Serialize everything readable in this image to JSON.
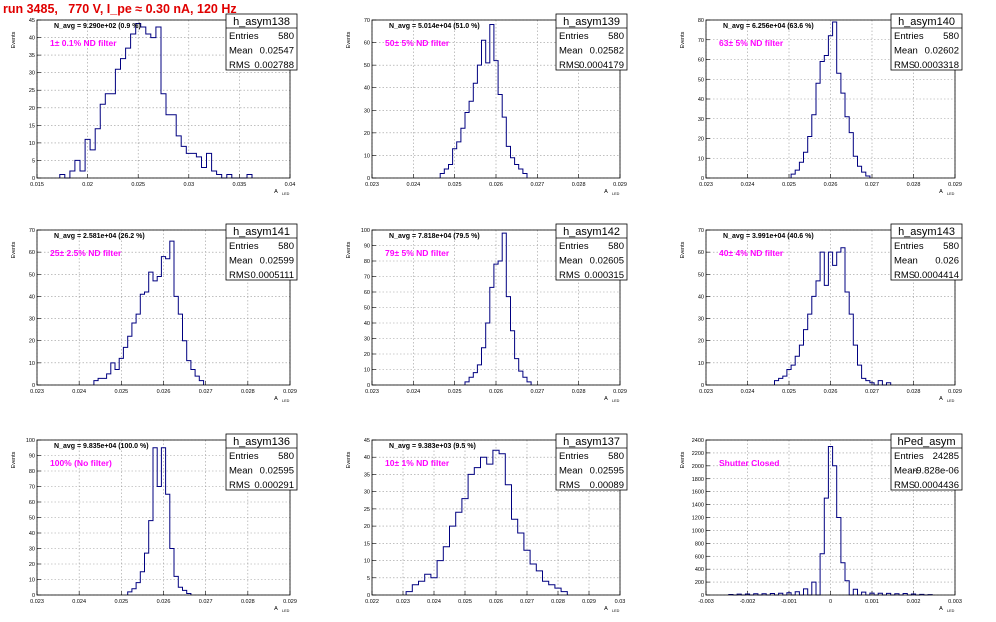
{
  "page_title": "run 3485,   770 V, I_pe ≈ 0.30 nA, 120 Hz",
  "colors": {
    "title": "#e00000",
    "histogram": "#000080",
    "annotation": "#ff00ff",
    "grid": "#9a9a9a"
  },
  "y_axis_label": "Events",
  "x_axis_label_main": "A",
  "x_axis_label_sub": "LED",
  "stats_labels": {
    "entries": "Entries",
    "mean": "Mean",
    "rms": "RMS"
  },
  "chart_data": [
    {
      "type": "histogram",
      "name": "h_asym138",
      "navg_text": "N_avg = 9.290e+02 (0.9 %)",
      "annotation": "1± 0.1% ND filter",
      "stats": {
        "entries": "580",
        "mean": "0.02547",
        "rms": "0.002788"
      },
      "xlim": [
        0.015,
        0.04
      ],
      "xticks": [
        "0.015",
        "0.02",
        "0.025",
        "0.03",
        "0.035",
        "0.04"
      ],
      "ylim": [
        0,
        45
      ],
      "yticks": [
        "0",
        "5",
        "10",
        "15",
        "20",
        "25",
        "30",
        "35",
        "40",
        "45"
      ],
      "bins": [
        [
          0.0175,
          1
        ],
        [
          0.0185,
          2
        ],
        [
          0.019,
          5
        ],
        [
          0.0195,
          2
        ],
        [
          0.02,
          11
        ],
        [
          0.0205,
          8
        ],
        [
          0.021,
          14
        ],
        [
          0.0215,
          21
        ],
        [
          0.022,
          24
        ],
        [
          0.0225,
          24
        ],
        [
          0.023,
          31
        ],
        [
          0.0235,
          34
        ],
        [
          0.024,
          37
        ],
        [
          0.0245,
          41
        ],
        [
          0.025,
          44
        ],
        [
          0.0255,
          43
        ],
        [
          0.026,
          41
        ],
        [
          0.0265,
          40
        ],
        [
          0.027,
          43
        ],
        [
          0.0275,
          24
        ],
        [
          0.028,
          18
        ],
        [
          0.0285,
          18
        ],
        [
          0.029,
          12
        ],
        [
          0.0295,
          9
        ],
        [
          0.03,
          7
        ],
        [
          0.0305,
          7
        ],
        [
          0.031,
          6
        ],
        [
          0.0315,
          3
        ],
        [
          0.032,
          7
        ],
        [
          0.0325,
          2
        ],
        [
          0.033,
          1
        ],
        [
          0.034,
          1
        ],
        [
          0.036,
          1
        ]
      ],
      "binw": 0.0005
    },
    {
      "type": "histogram",
      "name": "h_asym139",
      "navg_text": "N_avg = 5.014e+04 (51.0 %)",
      "annotation": "50± 5% ND filter",
      "stats": {
        "entries": "580",
        "mean": "0.02582",
        "rms": "0.0004179"
      },
      "xlim": [
        0.023,
        0.029
      ],
      "xticks": [
        "0.023",
        "0.024",
        "0.025",
        "0.026",
        "0.027",
        "0.028",
        "0.029"
      ],
      "ylim": [
        0,
        70
      ],
      "yticks": [
        "0",
        "10",
        "20",
        "30",
        "40",
        "50",
        "60",
        "70"
      ],
      "bins": [
        [
          0.0247,
          2
        ],
        [
          0.0248,
          4
        ],
        [
          0.0249,
          6
        ],
        [
          0.025,
          13
        ],
        [
          0.0251,
          16
        ],
        [
          0.0252,
          22
        ],
        [
          0.0253,
          29
        ],
        [
          0.0254,
          34
        ],
        [
          0.0255,
          42
        ],
        [
          0.0256,
          50
        ],
        [
          0.0257,
          61
        ],
        [
          0.0258,
          51
        ],
        [
          0.0259,
          68
        ],
        [
          0.026,
          52
        ],
        [
          0.0261,
          37
        ],
        [
          0.0262,
          27
        ],
        [
          0.0263,
          14
        ],
        [
          0.0264,
          9
        ],
        [
          0.0265,
          6
        ],
        [
          0.0266,
          4
        ],
        [
          0.0267,
          2
        ]
      ],
      "binw": 0.0001
    },
    {
      "type": "histogram",
      "name": "h_asym140",
      "navg_text": "N_avg = 6.256e+04 (63.6 %)",
      "annotation": "63± 5% ND filter",
      "stats": {
        "entries": "580",
        "mean": "0.02602",
        "rms": "0.0003318"
      },
      "xlim": [
        0.023,
        0.029
      ],
      "xticks": [
        "0.023",
        "0.024",
        "0.025",
        "0.026",
        "0.027",
        "0.028",
        "0.029"
      ],
      "ylim": [
        0,
        80
      ],
      "yticks": [
        "0",
        "10",
        "20",
        "30",
        "40",
        "50",
        "60",
        "70",
        "80"
      ],
      "bins": [
        [
          0.0251,
          2
        ],
        [
          0.0252,
          4
        ],
        [
          0.0253,
          8
        ],
        [
          0.0254,
          13
        ],
        [
          0.0255,
          21
        ],
        [
          0.0256,
          32
        ],
        [
          0.0257,
          48
        ],
        [
          0.0258,
          59
        ],
        [
          0.0259,
          62
        ],
        [
          0.026,
          72
        ],
        [
          0.0261,
          79
        ],
        [
          0.0262,
          53
        ],
        [
          0.0263,
          43
        ],
        [
          0.0264,
          31
        ],
        [
          0.0265,
          23
        ],
        [
          0.0266,
          11
        ],
        [
          0.0267,
          6
        ],
        [
          0.0268,
          3
        ],
        [
          0.0269,
          1
        ]
      ],
      "binw": 0.0001
    },
    {
      "type": "histogram",
      "name": "h_asym141",
      "navg_text": "N_avg = 2.581e+04 (26.2 %)",
      "annotation": "25± 2.5% ND filter",
      "stats": {
        "entries": "580",
        "mean": "0.02599",
        "rms": "0.0005111"
      },
      "xlim": [
        0.023,
        0.029
      ],
      "xticks": [
        "0.023",
        "0.024",
        "0.025",
        "0.026",
        "0.027",
        "0.028",
        "0.029"
      ],
      "ylim": [
        0,
        70
      ],
      "yticks": [
        "0",
        "10",
        "20",
        "30",
        "40",
        "50",
        "60",
        "70"
      ],
      "bins": [
        [
          0.0244,
          2
        ],
        [
          0.0245,
          3
        ],
        [
          0.0246,
          3
        ],
        [
          0.0247,
          5
        ],
        [
          0.0248,
          10
        ],
        [
          0.0249,
          7
        ],
        [
          0.025,
          12
        ],
        [
          0.0251,
          17
        ],
        [
          0.0252,
          22
        ],
        [
          0.0253,
          28
        ],
        [
          0.0254,
          32
        ],
        [
          0.0255,
          41
        ],
        [
          0.0256,
          42
        ],
        [
          0.0257,
          51
        ],
        [
          0.0258,
          47
        ],
        [
          0.0259,
          49
        ],
        [
          0.026,
          58
        ],
        [
          0.0261,
          57
        ],
        [
          0.0262,
          65
        ],
        [
          0.0263,
          40
        ],
        [
          0.0264,
          32
        ],
        [
          0.0265,
          20
        ],
        [
          0.0266,
          11
        ],
        [
          0.0267,
          7
        ],
        [
          0.0268,
          4
        ],
        [
          0.0269,
          2
        ]
      ],
      "binw": 0.0001
    },
    {
      "type": "histogram",
      "name": "h_asym142",
      "navg_text": "N_avg = 7.818e+04 (79.5 %)",
      "annotation": "79± 5% ND filter",
      "stats": {
        "entries": "580",
        "mean": "0.02605",
        "rms": "0.000315"
      },
      "xlim": [
        0.023,
        0.029
      ],
      "xticks": [
        "0.023",
        "0.024",
        "0.025",
        "0.026",
        "0.027",
        "0.028",
        "0.029"
      ],
      "ylim": [
        0,
        100
      ],
      "yticks": [
        "0",
        "10",
        "20",
        "30",
        "40",
        "50",
        "60",
        "70",
        "80",
        "90",
        "100"
      ],
      "bins": [
        [
          0.0253,
          2
        ],
        [
          0.0254,
          5
        ],
        [
          0.0255,
          8
        ],
        [
          0.0256,
          13
        ],
        [
          0.0257,
          24
        ],
        [
          0.0258,
          40
        ],
        [
          0.0259,
          63
        ],
        [
          0.026,
          78
        ],
        [
          0.0261,
          80
        ],
        [
          0.0262,
          98
        ],
        [
          0.0263,
          57
        ],
        [
          0.0264,
          35
        ],
        [
          0.0265,
          17
        ],
        [
          0.0266,
          9
        ],
        [
          0.0267,
          5
        ],
        [
          0.0268,
          2
        ]
      ],
      "binw": 0.0001
    },
    {
      "type": "histogram",
      "name": "h_asym143",
      "navg_text": "N_avg = 3.991e+04 (40.6 %)",
      "annotation": "40± 4% ND filter",
      "stats": {
        "entries": "580",
        "mean": "0.026",
        "rms": "0.0004414"
      },
      "xlim": [
        0.023,
        0.029
      ],
      "xticks": [
        "0.023",
        "0.024",
        "0.025",
        "0.026",
        "0.027",
        "0.028",
        "0.029"
      ],
      "ylim": [
        0,
        70
      ],
      "yticks": [
        "0",
        "10",
        "20",
        "30",
        "40",
        "50",
        "60",
        "70"
      ],
      "bins": [
        [
          0.0247,
          2
        ],
        [
          0.0248,
          3
        ],
        [
          0.0249,
          4
        ],
        [
          0.025,
          7
        ],
        [
          0.0251,
          9
        ],
        [
          0.0252,
          13
        ],
        [
          0.0253,
          18
        ],
        [
          0.0254,
          25
        ],
        [
          0.0255,
          32
        ],
        [
          0.0256,
          40
        ],
        [
          0.0257,
          47
        ],
        [
          0.0258,
          60
        ],
        [
          0.0259,
          45
        ],
        [
          0.026,
          60
        ],
        [
          0.0261,
          54
        ],
        [
          0.0262,
          60
        ],
        [
          0.0263,
          62
        ],
        [
          0.0264,
          42
        ],
        [
          0.0265,
          32
        ],
        [
          0.0266,
          18
        ],
        [
          0.0267,
          9
        ],
        [
          0.0268,
          3
        ],
        [
          0.0269,
          2
        ],
        [
          0.027,
          1
        ],
        [
          0.0272,
          2
        ],
        [
          0.0274,
          1
        ]
      ],
      "binw": 0.0001
    },
    {
      "type": "histogram",
      "name": "h_asym136",
      "navg_text": "N_avg = 9.835e+04 (100.0 %)",
      "annotation": "100% (No filter)",
      "stats": {
        "entries": "580",
        "mean": "0.02595",
        "rms": "0.000291"
      },
      "xlim": [
        0.023,
        0.029
      ],
      "xticks": [
        "0.023",
        "0.024",
        "0.025",
        "0.026",
        "0.027",
        "0.028",
        "0.029"
      ],
      "ylim": [
        0,
        100
      ],
      "yticks": [
        "0",
        "10",
        "20",
        "30",
        "40",
        "50",
        "60",
        "70",
        "80",
        "90",
        "100"
      ],
      "bins": [
        [
          0.0252,
          2
        ],
        [
          0.0253,
          4
        ],
        [
          0.0254,
          8
        ],
        [
          0.0255,
          15
        ],
        [
          0.0256,
          27
        ],
        [
          0.0257,
          48
        ],
        [
          0.0258,
          95
        ],
        [
          0.0259,
          70
        ],
        [
          0.026,
          95
        ],
        [
          0.0261,
          65
        ],
        [
          0.0262,
          30
        ],
        [
          0.0263,
          12
        ],
        [
          0.0264,
          5
        ],
        [
          0.0265,
          3
        ],
        [
          0.0266,
          1
        ]
      ],
      "binw": 0.0001
    },
    {
      "type": "histogram",
      "name": "h_asym137",
      "navg_text": "N_avg = 9.383e+03 (9.5 %)",
      "annotation": "10± 1% ND filter",
      "stats": {
        "entries": "580",
        "mean": "0.02595",
        "rms": "0.00089"
      },
      "xlim": [
        0.022,
        0.03
      ],
      "xticks": [
        "0.022",
        "0.023",
        "0.024",
        "0.025",
        "0.026",
        "0.027",
        "0.028",
        "0.029",
        "0.03"
      ],
      "ylim": [
        0,
        45
      ],
      "yticks": [
        "0",
        "5",
        "10",
        "15",
        "20",
        "25",
        "30",
        "35",
        "40",
        "45"
      ],
      "bins": [
        [
          0.0232,
          1
        ],
        [
          0.0234,
          3
        ],
        [
          0.0236,
          4
        ],
        [
          0.0238,
          6
        ],
        [
          0.024,
          5
        ],
        [
          0.0242,
          10
        ],
        [
          0.0244,
          14
        ],
        [
          0.0246,
          20
        ],
        [
          0.0248,
          24
        ],
        [
          0.025,
          28
        ],
        [
          0.0252,
          35
        ],
        [
          0.0254,
          37
        ],
        [
          0.0256,
          40
        ],
        [
          0.0258,
          38
        ],
        [
          0.026,
          42
        ],
        [
          0.0262,
          41
        ],
        [
          0.0264,
          32
        ],
        [
          0.0266,
          22
        ],
        [
          0.0268,
          18
        ],
        [
          0.027,
          13
        ],
        [
          0.0272,
          9
        ],
        [
          0.0274,
          7
        ],
        [
          0.0276,
          4
        ],
        [
          0.0278,
          3
        ],
        [
          0.028,
          2
        ],
        [
          0.0282,
          1
        ]
      ],
      "binw": 0.0002
    },
    {
      "type": "histogram",
      "name": "hPed_asym",
      "navg_text": "",
      "annotation": "Shutter Closed",
      "stats": {
        "entries": "24285",
        "mean": "-9.828e-06",
        "rms": "0.0004436"
      },
      "xlim": [
        -0.003,
        0.003
      ],
      "xticks": [
        "-0.003",
        "-0.002",
        "-0.001",
        "0",
        "0.001",
        "0.002",
        "0.003"
      ],
      "ylim": [
        0,
        2400
      ],
      "yticks": [
        "0",
        "200",
        "400",
        "600",
        "800",
        "1000",
        "1200",
        "1400",
        "1600",
        "1800",
        "2000",
        "2200",
        "2400"
      ],
      "bins": [
        [
          -0.0024,
          8
        ],
        [
          -0.0022,
          14
        ],
        [
          -0.002,
          16
        ],
        [
          -0.0018,
          20
        ],
        [
          -0.0016,
          18
        ],
        [
          -0.0014,
          24
        ],
        [
          -0.0012,
          28
        ],
        [
          -0.001,
          34
        ],
        [
          -0.0008,
          50
        ],
        [
          -0.0006,
          95
        ],
        [
          -0.0004,
          200
        ],
        [
          -0.0002,
          640
        ],
        [
          -0.0001,
          1500
        ],
        [
          0,
          2300
        ],
        [
          0.0001,
          2000
        ],
        [
          0.0002,
          1200
        ],
        [
          0.0003,
          500
        ],
        [
          0.0004,
          220
        ],
        [
          0.0006,
          90
        ],
        [
          0.0008,
          45
        ],
        [
          0.001,
          30
        ],
        [
          0.0012,
          26
        ],
        [
          0.0014,
          25
        ],
        [
          0.0016,
          20
        ],
        [
          0.0018,
          24
        ],
        [
          0.002,
          16
        ],
        [
          0.0022,
          10
        ],
        [
          0.0024,
          6
        ]
      ],
      "binw": 0.0001
    }
  ]
}
